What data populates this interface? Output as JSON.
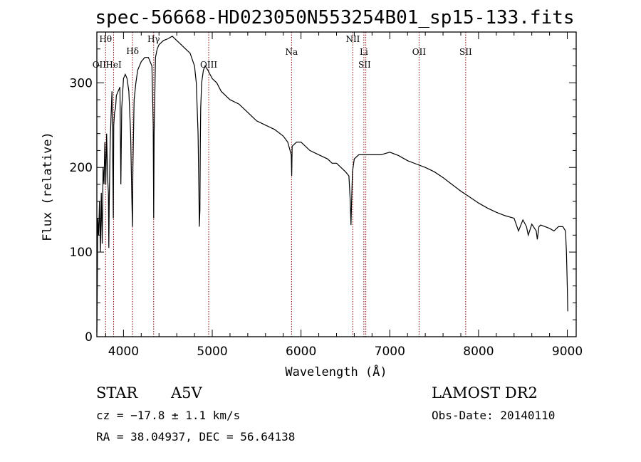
{
  "chart_data": {
    "type": "line",
    "title": "spec-56668-HD023050N553254B01_sp15-133.fits",
    "xlabel": "Wavelength (Å)",
    "ylabel": "Flux (relative)",
    "xlim": [
      3700,
      9100
    ],
    "ylim": [
      0,
      360
    ],
    "grid": false,
    "x_ticks": [
      4000,
      5000,
      6000,
      7000,
      8000,
      9000
    ],
    "y_ticks": [
      0,
      100,
      200,
      300
    ],
    "series": [
      {
        "x": [
          3700,
          3705,
          3710,
          3720,
          3730,
          3740,
          3750,
          3760,
          3770,
          3780,
          3790,
          3800,
          3810,
          3820,
          3830,
          3835,
          3840,
          3850,
          3860,
          3870,
          3880,
          3885,
          3890,
          3900,
          3910,
          3920,
          3940,
          3960,
          3970,
          3980,
          4000,
          4020,
          4040,
          4060,
          4080,
          4095,
          4101,
          4106,
          4120,
          4140,
          4160,
          4200,
          4240,
          4280,
          4320,
          4335,
          4340,
          4345,
          4360,
          4380,
          4400,
          4450,
          4500,
          4550,
          4600,
          4650,
          4700,
          4750,
          4800,
          4820,
          4840,
          4850,
          4855,
          4861,
          4866,
          4870,
          4880,
          4900,
          4920,
          4950,
          5000,
          5050,
          5100,
          5150,
          5200,
          5300,
          5400,
          5500,
          5600,
          5700,
          5800,
          5850,
          5890,
          5895,
          5900,
          5950,
          6000,
          6100,
          6200,
          6300,
          6350,
          6400,
          6450,
          6500,
          6540,
          6555,
          6563,
          6570,
          6580,
          6600,
          6650,
          6700,
          6800,
          6900,
          7000,
          7100,
          7200,
          7300,
          7400,
          7500,
          7600,
          7700,
          7800,
          7900,
          8000,
          8100,
          8200,
          8300,
          8400,
          8450,
          8500,
          8540,
          8560,
          8600,
          8650,
          8662,
          8680,
          8700,
          8750,
          8800,
          8850,
          8900,
          8950,
          8980,
          8990,
          9000,
          9005
        ],
        "y": [
          5,
          60,
          140,
          120,
          160,
          100,
          170,
          110,
          200,
          180,
          230,
          180,
          240,
          190,
          170,
          105,
          160,
          230,
          260,
          290,
          200,
          140,
          250,
          265,
          270,
          285,
          290,
          295,
          180,
          270,
          305,
          310,
          305,
          290,
          240,
          160,
          130,
          200,
          280,
          300,
          315,
          325,
          330,
          330,
          320,
          250,
          140,
          240,
          330,
          340,
          345,
          350,
          352,
          355,
          350,
          345,
          340,
          335,
          320,
          300,
          240,
          170,
          130,
          150,
          230,
          270,
          300,
          315,
          320,
          315,
          305,
          300,
          290,
          285,
          280,
          275,
          265,
          255,
          250,
          245,
          237,
          230,
          215,
          190,
          225,
          230,
          230,
          220,
          215,
          210,
          205,
          205,
          200,
          195,
          190,
          160,
          132,
          160,
          195,
          210,
          215,
          215,
          215,
          215,
          218,
          214,
          208,
          204,
          200,
          195,
          188,
          180,
          172,
          165,
          158,
          152,
          147,
          143,
          140,
          125,
          138,
          130,
          120,
          133,
          125,
          115,
          130,
          132,
          130,
          128,
          125,
          130,
          130,
          125,
          100,
          60,
          30
        ]
      }
    ],
    "annotations": [
      {
        "label": "Hθ",
        "x": 3798
      },
      {
        "label": "OII",
        "x": 3727
      },
      {
        "label": "HeI",
        "x": 3889
      },
      {
        "label": "Hδ",
        "x": 4102
      },
      {
        "label": "Hγ",
        "x": 4340
      },
      {
        "label": "OIII",
        "x": 4960
      },
      {
        "label": "Na",
        "x": 5893
      },
      {
        "label": "NII",
        "x": 6584
      },
      {
        "label": "SII",
        "x": 6716
      },
      {
        "label": "Li",
        "x": 6708
      },
      {
        "label": "OII",
        "x": 7330
      },
      {
        "label": "SII",
        "x": 7855
      }
    ],
    "marker_lines": [
      3798,
      3889,
      4102,
      4340,
      4960,
      5893,
      6584,
      6708,
      6730,
      7330,
      7855
    ]
  },
  "info": {
    "class": "STAR",
    "subclass": "A5V",
    "cz": "cz = −17.8 ± 1.1 km/s",
    "radec": "RA =  38.04937, DEC =  56.64138",
    "survey": "LAMOST DR2",
    "obs_date": "Obs-Date: 20140110"
  },
  "colors": {
    "spectrum": "#000000",
    "marker_line": "#8b0000",
    "frame": "#000000"
  }
}
